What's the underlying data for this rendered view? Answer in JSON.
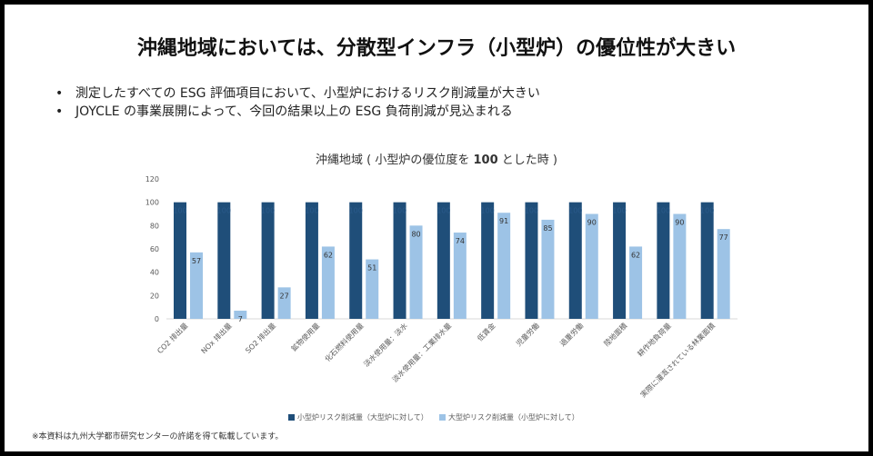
{
  "title": "沖縄地域においては、分散型インフラ（小型炉）の優位性が大きい",
  "bullets": [
    "測定したすべての ESG 評価項目において、小型炉におけるリスク削減量が大きい",
    "JOYCLE の事業展開によって、今回の結果以上の ESG 負荷削減が見込まれる"
  ],
  "chart_title": {
    "prefix": "沖縄地域 ( 小型炉の優位度を ",
    "bold": "100",
    "suffix": " とした時 )"
  },
  "footnote": "※本資料は九州大学都市研究センターの許諾を得て転載しています。",
  "colors": {
    "small": "#1f4e79",
    "large": "#9dc3e6",
    "axis": "#d9d9d9",
    "text": "#595959"
  },
  "chart_data": {
    "type": "bar",
    "title": "沖縄地域 ( 小型炉の優位度を 100 とした時 )",
    "categories": [
      "CO2 排出量",
      "NOx 排出量",
      "SO2 排出量",
      "鉱物使用量",
      "化石燃料使用量",
      "淡水使用量：淡水",
      "淡水使用量：工業排水量",
      "低賃金",
      "児童労働",
      "過重労働",
      "陸地面積",
      "耕作地負荷量",
      "実際に灌漑されている林業面積"
    ],
    "series": [
      {
        "name": "小型炉リスク削減量（大型炉に対して）",
        "values": [
          100,
          100,
          100,
          100,
          100,
          100,
          100,
          100,
          100,
          100,
          100,
          100,
          100
        ],
        "labels": [
          "100",
          "100",
          "100",
          "100",
          "100",
          "100",
          "100",
          "100",
          "100",
          "100",
          "100",
          "100",
          "100"
        ]
      },
      {
        "name": "大型炉リスク削減量（小型炉に対して）",
        "values": [
          57,
          7,
          27,
          62,
          51,
          80,
          74,
          91,
          85,
          90,
          62,
          90,
          77
        ],
        "labels": [
          "57",
          "7",
          "27",
          "62",
          "51",
          "80",
          "74",
          "91",
          "85",
          "90",
          "62",
          "90",
          "77"
        ]
      }
    ],
    "yticks": [
      "0",
      "20",
      "40",
      "60",
      "80",
      "100",
      "120"
    ],
    "ylim": [
      0,
      120
    ],
    "legend": "bottom"
  }
}
